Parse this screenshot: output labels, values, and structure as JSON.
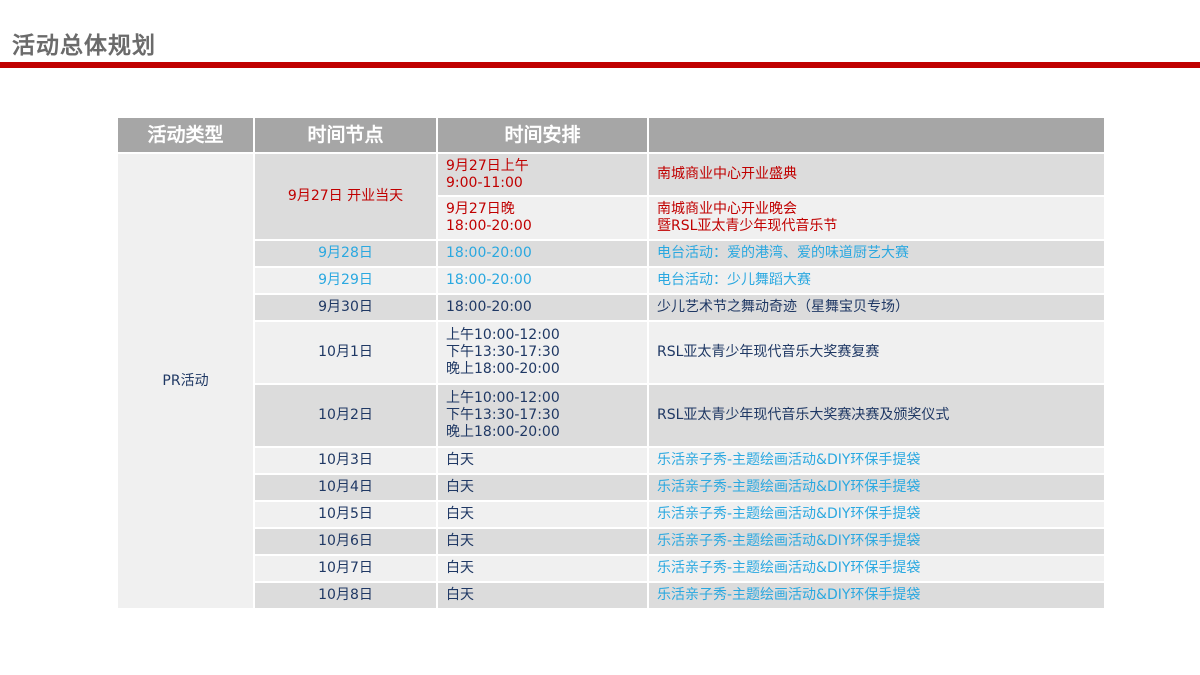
{
  "title": "活动总体规划",
  "colors": {
    "accent": "#c00000",
    "highlight_blue": "#2aa8e0",
    "text": "#1f3864",
    "header": "#a6a6a6"
  },
  "headers": [
    "活动类型",
    "时间节点",
    "时间安排",
    ""
  ],
  "type": "PR活动",
  "opening": {
    "node": "9月27日 开业当天",
    "rows": [
      {
        "time": [
          "9月27日上午",
          "9:00-11:00"
        ],
        "event": [
          "南城商业中心开业盛典"
        ]
      },
      {
        "time": [
          "9月27日晚",
          "18:00-20:00"
        ],
        "event": [
          "南城商业中心开业晚会",
          "暨RSL亚太青少年现代音乐节"
        ]
      }
    ]
  },
  "rows": [
    {
      "node": "9月28日",
      "time": [
        "18:00-20:00"
      ],
      "event": [
        "电台活动：爱的港湾、爱的味道厨艺大赛"
      ],
      "color": "blue"
    },
    {
      "node": "9月29日",
      "time": [
        "18:00-20:00"
      ],
      "event": [
        "电台活动：少儿舞蹈大赛"
      ],
      "color": "blue"
    },
    {
      "node": "9月30日",
      "time": [
        "18:00-20:00"
      ],
      "event": [
        "少儿艺术节之舞动奇迹（星舞宝贝专场）"
      ],
      "color": ""
    },
    {
      "node": "10月1日",
      "time": [
        "上午10:00-12:00",
        "下午13:30-17:30",
        "晚上18:00-20:00"
      ],
      "event": [
        "RSL亚太青少年现代音乐大奖赛复赛"
      ],
      "color": ""
    },
    {
      "node": "10月2日",
      "time": [
        "上午10:00-12:00",
        "下午13:30-17:30",
        "晚上18:00-20:00"
      ],
      "event": [
        "RSL亚太青少年现代音乐大奖赛决赛及颁奖仪式"
      ],
      "color": ""
    },
    {
      "node": "10月3日",
      "time": [
        "白天"
      ],
      "event": [
        "乐活亲子秀-主题绘画活动&DIY环保手提袋"
      ],
      "color": "blue-event"
    },
    {
      "node": "10月4日",
      "time": [
        "白天"
      ],
      "event": [
        "乐活亲子秀-主题绘画活动&DIY环保手提袋"
      ],
      "color": "blue-event"
    },
    {
      "node": "10月5日",
      "time": [
        "白天"
      ],
      "event": [
        "乐活亲子秀-主题绘画活动&DIY环保手提袋"
      ],
      "color": "blue-event"
    },
    {
      "node": "10月6日",
      "time": [
        "白天"
      ],
      "event": [
        "乐活亲子秀-主题绘画活动&DIY环保手提袋"
      ],
      "color": "blue-event"
    },
    {
      "node": "10月7日",
      "time": [
        "白天"
      ],
      "event": [
        "乐活亲子秀-主题绘画活动&DIY环保手提袋"
      ],
      "color": "blue-event"
    },
    {
      "node": "10月8日",
      "time": [
        "白天"
      ],
      "event": [
        "乐活亲子秀-主题绘画活动&DIY环保手提袋"
      ],
      "color": "blue-event"
    }
  ]
}
